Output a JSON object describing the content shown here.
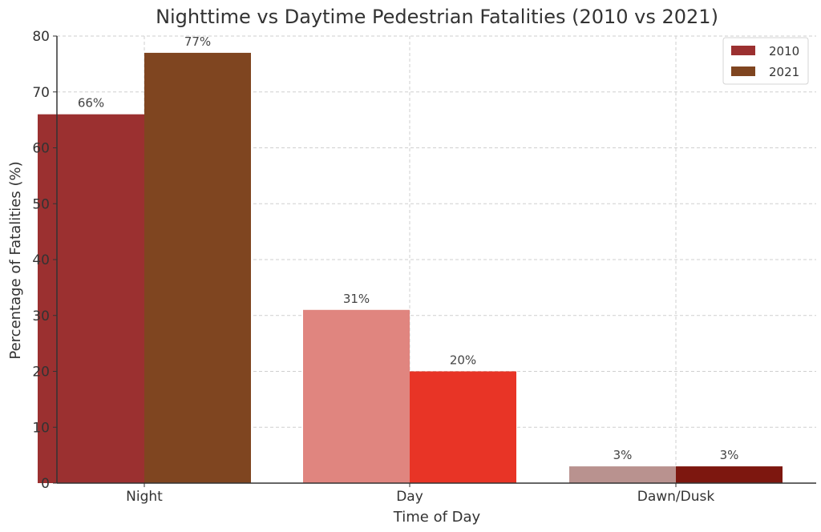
{
  "chart_data": {
    "type": "bar",
    "title": "Nighttime vs Daytime Pedestrian Fatalities (2010 vs 2021)",
    "xlabel": "Time of Day",
    "ylabel": "Percentage of Fatalities (%)",
    "categories": [
      "Night",
      "Day",
      "Dawn/Dusk"
    ],
    "ylim": [
      0,
      80
    ],
    "yticks": [
      0,
      10,
      20,
      30,
      40,
      50,
      60,
      70,
      80
    ],
    "grid": true,
    "legend_position": "top-right",
    "series": [
      {
        "name": "2010",
        "values": [
          66,
          31,
          3
        ],
        "labels": [
          "66%",
          "31%",
          "3%"
        ],
        "colors": [
          "#9b3030",
          "#e0857f",
          "#b9928f"
        ],
        "legend_color": "#9b3030"
      },
      {
        "name": "2021",
        "values": [
          77,
          20,
          3
        ],
        "labels": [
          "77%",
          "20%",
          "3%"
        ],
        "colors": [
          "#7f4520",
          "#e83426",
          "#7d170f"
        ],
        "legend_color": "#7f4520"
      }
    ]
  }
}
